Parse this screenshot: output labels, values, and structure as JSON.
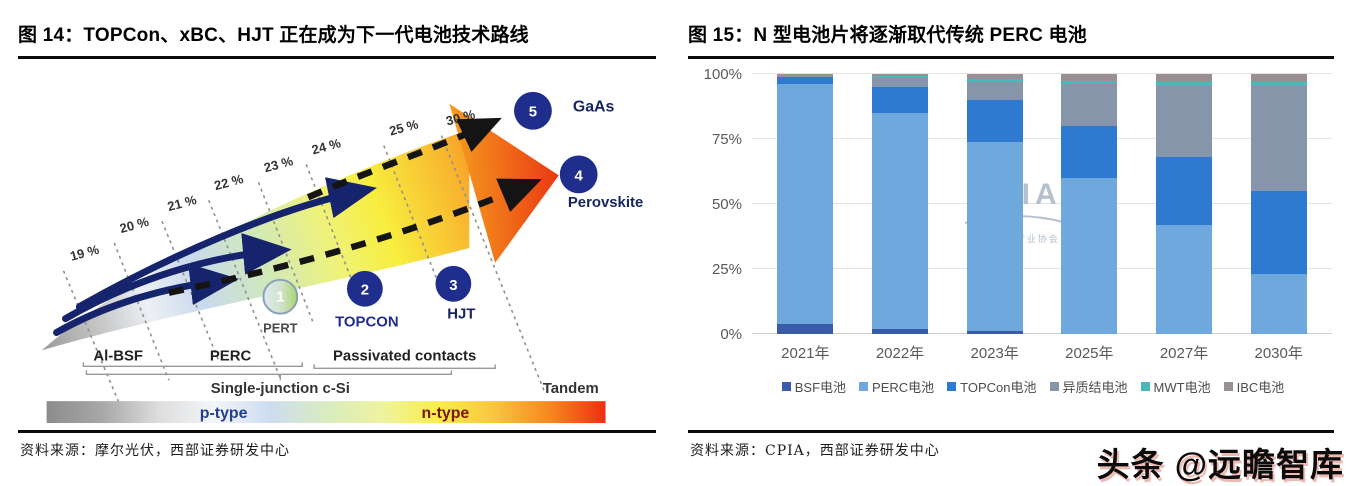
{
  "left_panel": {
    "title": "图 14：TOPCon、xBC、HJT 正在成为下一代电池技术路线",
    "source": "资料来源：摩尔光伏，西部证券研发中心",
    "diagram": {
      "efficiency_labels": [
        "19 %",
        "20 %",
        "21 %",
        "22 %",
        "23 %",
        "24 %",
        "25 %",
        "30 %"
      ],
      "milestones": [
        {
          "num": "1",
          "label": "PERT"
        },
        {
          "num": "2",
          "label": "TOPCON"
        },
        {
          "num": "3",
          "label": "HJT"
        },
        {
          "num": "4",
          "label": "Perovskite"
        },
        {
          "num": "5",
          "label": "GaAs"
        }
      ],
      "tech_labels": [
        "Al-BSF",
        "PERC",
        "Passivated contacts"
      ],
      "junction_labels": [
        "Single-junction c-Si",
        "Tandem"
      ],
      "type_labels": [
        "p-type",
        "n-type"
      ]
    }
  },
  "right_panel": {
    "title": "图 15：N 型电池片将逐渐取代传统 PERC 电池",
    "source": "资料来源：CPIA，西部证券研发中心",
    "watermark": {
      "main": "CPIA",
      "sub": "中国光伏行业协会"
    }
  },
  "chart_data": {
    "type": "bar",
    "stacked": true,
    "title": "图 15：N 型电池片将逐渐取代传统 PERC 电池",
    "categories": [
      "2021年",
      "2022年",
      "2023年",
      "2025年",
      "2027年",
      "2030年"
    ],
    "series": [
      {
        "name": "BSF电池",
        "color": "#3a5ba9",
        "values": [
          4,
          2,
          1,
          0,
          0,
          0
        ]
      },
      {
        "name": "PERC电池",
        "color": "#6fa8dc",
        "values": [
          92,
          83,
          73,
          60,
          42,
          23
        ]
      },
      {
        "name": "TOPCon电池",
        "color": "#2e7ad1",
        "values": [
          3,
          10,
          16,
          20,
          26,
          32
        ]
      },
      {
        "name": "异质结电池",
        "color": "#8795aa",
        "values": [
          0.4,
          4,
          7,
          16,
          27.5,
          40.5
        ]
      },
      {
        "name": "MWT电池",
        "color": "#4ab8b8",
        "values": [
          0.2,
          0.3,
          1,
          1.5,
          1.5,
          1.5
        ]
      },
      {
        "name": "IBC电池",
        "color": "#998f94",
        "values": [
          0.4,
          0.7,
          2,
          2.5,
          3,
          3
        ]
      }
    ],
    "ylabel_ticks": [
      "0%",
      "25%",
      "50%",
      "75%",
      "100%"
    ],
    "ylim": [
      0,
      100
    ],
    "grid": true,
    "legend_position": "bottom"
  },
  "page_watermark": "头条 @远瞻智库"
}
